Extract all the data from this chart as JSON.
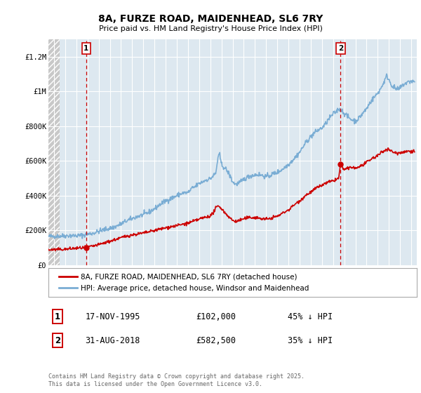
{
  "title": "8A, FURZE ROAD, MAIDENHEAD, SL6 7RY",
  "subtitle": "Price paid vs. HM Land Registry's House Price Index (HPI)",
  "ylabel_ticks": [
    "£0",
    "£200K",
    "£400K",
    "£600K",
    "£800K",
    "£1M",
    "£1.2M"
  ],
  "ytick_values": [
    0,
    200000,
    400000,
    600000,
    800000,
    1000000,
    1200000
  ],
  "ylim": [
    0,
    1300000
  ],
  "xlim_start": 1992.5,
  "xlim_end": 2025.5,
  "sale1_x": 1995.88,
  "sale1_y": 102000,
  "sale2_x": 2018.67,
  "sale2_y": 582500,
  "marker_color": "#cc0000",
  "hpi_color": "#7aadd4",
  "sale_line_color": "#cc0000",
  "vline_color": "#cc0000",
  "plot_bg_color": "#dde8f0",
  "hatch_bg_color": "#c8c8c8",
  "grid_color": "#ffffff",
  "legend_label_red": "8A, FURZE ROAD, MAIDENHEAD, SL6 7RY (detached house)",
  "legend_label_blue": "HPI: Average price, detached house, Windsor and Maidenhead",
  "annotation1_date": "17-NOV-1995",
  "annotation1_price": "£102,000",
  "annotation1_hpi": "45% ↓ HPI",
  "annotation2_date": "31-AUG-2018",
  "annotation2_price": "£582,500",
  "annotation2_hpi": "35% ↓ HPI",
  "footnote": "Contains HM Land Registry data © Crown copyright and database right 2025.\nThis data is licensed under the Open Government Licence v3.0.",
  "hpi_anchors": [
    [
      1992.5,
      165000
    ],
    [
      1993.0,
      167000
    ],
    [
      1993.5,
      168000
    ],
    [
      1994.0,
      170000
    ],
    [
      1994.5,
      171000
    ],
    [
      1995.0,
      170000
    ],
    [
      1995.5,
      172000
    ],
    [
      1996.0,
      178000
    ],
    [
      1996.5,
      185000
    ],
    [
      1997.0,
      195000
    ],
    [
      1997.5,
      205000
    ],
    [
      1998.0,
      212000
    ],
    [
      1998.5,
      222000
    ],
    [
      1999.0,
      238000
    ],
    [
      1999.5,
      255000
    ],
    [
      2000.0,
      268000
    ],
    [
      2000.5,
      282000
    ],
    [
      2001.0,
      290000
    ],
    [
      2001.5,
      305000
    ],
    [
      2002.0,
      325000
    ],
    [
      2002.5,
      350000
    ],
    [
      2003.0,
      370000
    ],
    [
      2003.5,
      385000
    ],
    [
      2004.0,
      400000
    ],
    [
      2004.5,
      415000
    ],
    [
      2005.0,
      418000
    ],
    [
      2005.2,
      430000
    ],
    [
      2005.4,
      445000
    ],
    [
      2005.6,
      450000
    ],
    [
      2005.8,
      460000
    ],
    [
      2006.0,
      470000
    ],
    [
      2006.3,
      480000
    ],
    [
      2006.6,
      490000
    ],
    [
      2007.0,
      498000
    ],
    [
      2007.2,
      510000
    ],
    [
      2007.5,
      530000
    ],
    [
      2007.7,
      625000
    ],
    [
      2007.85,
      635000
    ],
    [
      2007.9,
      615000
    ],
    [
      2008.0,
      580000
    ],
    [
      2008.2,
      565000
    ],
    [
      2008.5,
      545000
    ],
    [
      2008.8,
      510000
    ],
    [
      2009.0,
      480000
    ],
    [
      2009.3,
      465000
    ],
    [
      2009.6,
      475000
    ],
    [
      2009.9,
      488000
    ],
    [
      2010.0,
      495000
    ],
    [
      2010.3,
      505000
    ],
    [
      2010.6,
      515000
    ],
    [
      2011.0,
      520000
    ],
    [
      2011.3,
      522000
    ],
    [
      2011.6,
      518000
    ],
    [
      2012.0,
      510000
    ],
    [
      2012.3,
      515000
    ],
    [
      2012.6,
      525000
    ],
    [
      2013.0,
      535000
    ],
    [
      2013.3,
      545000
    ],
    [
      2013.6,
      560000
    ],
    [
      2014.0,
      580000
    ],
    [
      2014.3,
      600000
    ],
    [
      2014.6,
      620000
    ],
    [
      2015.0,
      650000
    ],
    [
      2015.3,
      680000
    ],
    [
      2015.6,
      710000
    ],
    [
      2016.0,
      740000
    ],
    [
      2016.3,
      760000
    ],
    [
      2016.6,
      775000
    ],
    [
      2017.0,
      790000
    ],
    [
      2017.3,
      810000
    ],
    [
      2017.6,
      840000
    ],
    [
      2018.0,
      870000
    ],
    [
      2018.3,
      885000
    ],
    [
      2018.5,
      900000
    ],
    [
      2018.7,
      895000
    ],
    [
      2019.0,
      875000
    ],
    [
      2019.3,
      855000
    ],
    [
      2019.6,
      840000
    ],
    [
      2020.0,
      830000
    ],
    [
      2020.3,
      845000
    ],
    [
      2020.6,
      870000
    ],
    [
      2021.0,
      900000
    ],
    [
      2021.3,
      935000
    ],
    [
      2021.6,
      960000
    ],
    [
      2022.0,
      990000
    ],
    [
      2022.3,
      1020000
    ],
    [
      2022.6,
      1060000
    ],
    [
      2022.8,
      1090000
    ],
    [
      2023.0,
      1070000
    ],
    [
      2023.2,
      1040000
    ],
    [
      2023.5,
      1020000
    ],
    [
      2023.8,
      1010000
    ],
    [
      2024.0,
      1020000
    ],
    [
      2024.3,
      1040000
    ],
    [
      2024.6,
      1050000
    ],
    [
      2024.8,
      1055000
    ],
    [
      2025.0,
      1060000
    ],
    [
      2025.3,
      1055000
    ]
  ],
  "sale_anchors": [
    [
      1992.5,
      88000
    ],
    [
      1993.0,
      90000
    ],
    [
      1993.5,
      91000
    ],
    [
      1994.0,
      92000
    ],
    [
      1994.5,
      95000
    ],
    [
      1995.0,
      98000
    ],
    [
      1995.88,
      102000
    ],
    [
      1996.0,
      104000
    ],
    [
      1996.5,
      110000
    ],
    [
      1997.0,
      118000
    ],
    [
      1997.5,
      128000
    ],
    [
      1998.0,
      138000
    ],
    [
      1998.5,
      148000
    ],
    [
      1999.0,
      158000
    ],
    [
      1999.5,
      168000
    ],
    [
      2000.0,
      175000
    ],
    [
      2000.5,
      180000
    ],
    [
      2001.0,
      185000
    ],
    [
      2001.5,
      192000
    ],
    [
      2002.0,
      200000
    ],
    [
      2002.5,
      208000
    ],
    [
      2003.0,
      215000
    ],
    [
      2003.5,
      222000
    ],
    [
      2004.0,
      228000
    ],
    [
      2004.5,
      235000
    ],
    [
      2005.0,
      242000
    ],
    [
      2005.3,
      248000
    ],
    [
      2005.7,
      258000
    ],
    [
      2006.0,
      265000
    ],
    [
      2006.3,
      272000
    ],
    [
      2006.7,
      278000
    ],
    [
      2007.0,
      285000
    ],
    [
      2007.2,
      295000
    ],
    [
      2007.5,
      330000
    ],
    [
      2007.7,
      340000
    ],
    [
      2007.9,
      335000
    ],
    [
      2008.2,
      310000
    ],
    [
      2008.5,
      290000
    ],
    [
      2008.8,
      270000
    ],
    [
      2009.0,
      258000
    ],
    [
      2009.3,
      252000
    ],
    [
      2009.6,
      258000
    ],
    [
      2009.9,
      265000
    ],
    [
      2010.2,
      270000
    ],
    [
      2010.5,
      275000
    ],
    [
      2011.0,
      275000
    ],
    [
      2011.3,
      272000
    ],
    [
      2011.6,
      268000
    ],
    [
      2012.0,
      265000
    ],
    [
      2012.3,
      268000
    ],
    [
      2012.6,
      275000
    ],
    [
      2013.0,
      282000
    ],
    [
      2013.3,
      292000
    ],
    [
      2013.6,
      305000
    ],
    [
      2014.0,
      318000
    ],
    [
      2014.3,
      335000
    ],
    [
      2014.6,
      352000
    ],
    [
      2015.0,
      370000
    ],
    [
      2015.3,
      388000
    ],
    [
      2015.6,
      405000
    ],
    [
      2016.0,
      420000
    ],
    [
      2016.3,
      435000
    ],
    [
      2016.6,
      448000
    ],
    [
      2017.0,
      460000
    ],
    [
      2017.3,
      470000
    ],
    [
      2017.6,
      478000
    ],
    [
      2018.0,
      485000
    ],
    [
      2018.3,
      495000
    ],
    [
      2018.5,
      500000
    ],
    [
      2018.67,
      582500
    ],
    [
      2018.8,
      565000
    ],
    [
      2019.0,
      550000
    ],
    [
      2019.3,
      555000
    ],
    [
      2019.6,
      565000
    ],
    [
      2020.0,
      558000
    ],
    [
      2020.3,
      565000
    ],
    [
      2020.6,
      575000
    ],
    [
      2021.0,
      590000
    ],
    [
      2021.3,
      605000
    ],
    [
      2021.6,
      618000
    ],
    [
      2022.0,
      630000
    ],
    [
      2022.3,
      648000
    ],
    [
      2022.6,
      660000
    ],
    [
      2022.8,
      670000
    ],
    [
      2023.0,
      665000
    ],
    [
      2023.2,
      658000
    ],
    [
      2023.5,
      648000
    ],
    [
      2023.8,
      645000
    ],
    [
      2024.0,
      648000
    ],
    [
      2024.3,
      652000
    ],
    [
      2024.6,
      655000
    ],
    [
      2024.9,
      658000
    ],
    [
      2025.3,
      655000
    ]
  ]
}
